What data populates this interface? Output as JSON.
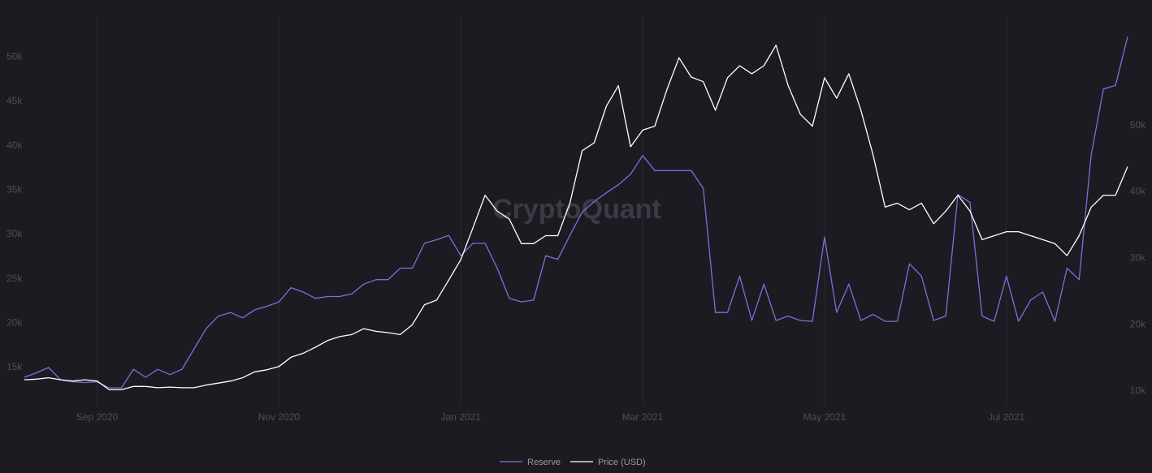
{
  "chart_data": {
    "type": "line",
    "watermark": "CryptoQuant",
    "categories": [
      null,
      null,
      null,
      null,
      null,
      null,
      "Sep 2020",
      null,
      null,
      null,
      null,
      null,
      null,
      null,
      null,
      null,
      null,
      null,
      null,
      null,
      null,
      "Nov 2020",
      null,
      null,
      null,
      null,
      null,
      null,
      null,
      null,
      null,
      null,
      null,
      null,
      null,
      null,
      "Jan 2021",
      null,
      null,
      null,
      null,
      null,
      null,
      null,
      null,
      null,
      null,
      null,
      null,
      null,
      null,
      "Mar 2021",
      null,
      null,
      null,
      null,
      null,
      null,
      null,
      null,
      null,
      null,
      null,
      null,
      null,
      null,
      "May 2021",
      null,
      null,
      null,
      null,
      null,
      null,
      null,
      null,
      null,
      null,
      null,
      null,
      null,
      null,
      "Jul 2021",
      null,
      null,
      null,
      null,
      null,
      null,
      null,
      null,
      null,
      null
    ],
    "series": [
      {
        "name": "Reserve",
        "color": "#7d6fd8",
        "values": [
          13900,
          14400,
          15000,
          13600,
          13400,
          13300,
          13400,
          12700,
          12700,
          14800,
          13900,
          14800,
          14200,
          14800,
          17100,
          19400,
          20800,
          21200,
          20600,
          21500,
          21900,
          22400,
          24000,
          23500,
          22800,
          23000,
          23000,
          23300,
          24400,
          24900,
          24900,
          26200,
          26200,
          29000,
          29400,
          29900,
          27600,
          29000,
          29000,
          26200,
          22800,
          22400,
          22600,
          27600,
          27200,
          29900,
          32500,
          33700,
          34700,
          35600,
          36800,
          38900,
          37200,
          37200,
          37200,
          37200,
          35200,
          21200,
          21200,
          25300,
          20300,
          24400,
          20300,
          20800,
          20300,
          20200,
          29700,
          21200,
          24400,
          20300,
          21000,
          20200,
          20200,
          26700,
          25300,
          20300,
          20800,
          34500,
          33600,
          20800,
          20200,
          25300,
          20200,
          22600,
          23500,
          20200,
          26200,
          24900,
          39000,
          46400,
          46800,
          52300
        ]
      },
      {
        "name": "Price (USD)",
        "color": "#ffffff",
        "axis": "y2",
        "values": [
          11700,
          11800,
          12000,
          11700,
          11500,
          11700,
          11500,
          10200,
          10200,
          10700,
          10700,
          10500,
          10600,
          10500,
          10500,
          10900,
          11200,
          11500,
          12000,
          12900,
          13200,
          13700,
          15100,
          15700,
          16600,
          17600,
          18200,
          18500,
          19400,
          19000,
          18800,
          18500,
          20000,
          23000,
          23700,
          26700,
          29800,
          34600,
          39500,
          37100,
          35900,
          32200,
          32200,
          33400,
          33400,
          38300,
          46200,
          47400,
          52900,
          56000,
          46800,
          49300,
          49900,
          55400,
          60200,
          57300,
          56600,
          52300,
          57200,
          59000,
          57800,
          59000,
          62100,
          56000,
          51700,
          49900,
          57200,
          54100,
          57800,
          52300,
          45600,
          37700,
          38300,
          37300,
          38300,
          35200,
          37100,
          39500,
          37100,
          32800,
          33400,
          34000,
          34000,
          33400,
          32800,
          32200,
          30400,
          33400,
          37700,
          39500,
          39500,
          43800
        ]
      }
    ],
    "ylim": [
      10700,
      54600
    ],
    "yticks": [
      {
        "value": 15000,
        "label": "15k"
      },
      {
        "value": 20000,
        "label": "20k"
      },
      {
        "value": 25000,
        "label": "25k"
      },
      {
        "value": 30000,
        "label": "30k"
      },
      {
        "value": 35000,
        "label": "35k"
      },
      {
        "value": 40000,
        "label": "40k"
      },
      {
        "value": 45000,
        "label": "45k"
      },
      {
        "value": 50000,
        "label": "50k"
      }
    ],
    "y2lim": [
      7800,
      66460
    ],
    "y2ticks": [
      {
        "value": 10000,
        "label": "10k"
      },
      {
        "value": 20000,
        "label": "20k"
      },
      {
        "value": 30000,
        "label": "30k"
      },
      {
        "value": 40000,
        "label": "40k"
      },
      {
        "value": 50000,
        "label": "50k"
      }
    ],
    "grid": true
  }
}
